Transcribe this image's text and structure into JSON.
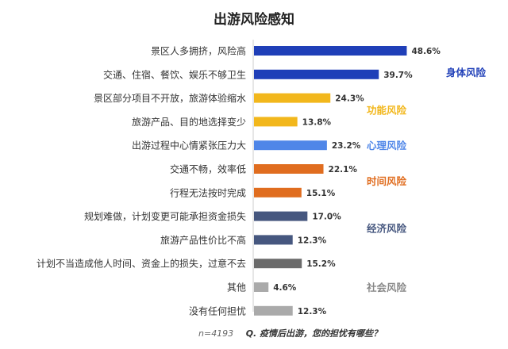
{
  "chart_data": {
    "type": "bar",
    "orientation": "horizontal",
    "title": "出游风险感知",
    "categories": [
      "景区人多拥挤，风险高",
      "交通、住宿、餐饮、娱乐不够卫生",
      "景区部分项目不开放，旅游体验缩水",
      "旅游产品、目的地选择变少",
      "出游过程中心情紧张压力大",
      "交通不畅，效率低",
      "行程无法按时完成",
      "规划难做，计划变更可能承担资金损失",
      "旅游产品性价比不高",
      "计划不当造成他人时间、资金上的损失，过意不去",
      "其他",
      "没有任何担忧"
    ],
    "values": [
      48.6,
      39.7,
      24.3,
      13.8,
      23.2,
      22.1,
      15.1,
      17.0,
      12.3,
      15.2,
      4.6,
      12.3
    ],
    "value_labels": [
      "48.6%",
      "39.7%",
      "24.3%",
      "13.8%",
      "23.2%",
      "22.1%",
      "15.1%",
      "17.0%",
      "12.3%",
      "15.2%",
      "4.6%",
      "12.3%"
    ],
    "xlim": [
      0,
      50
    ],
    "grid": false,
    "groups": [
      {
        "name": "身体风险",
        "start": 0,
        "end": 1,
        "color": "#1f3fb8"
      },
      {
        "name": "功能风险",
        "start": 2,
        "end": 3,
        "color": "#f2b71c"
      },
      {
        "name": "心理风险",
        "start": 4,
        "end": 4,
        "color": "#4f86e8"
      },
      {
        "name": "时间风险",
        "start": 5,
        "end": 6,
        "color": "#e06d1f"
      },
      {
        "name": "经济风险",
        "start": 7,
        "end": 8,
        "color": "#46577f"
      },
      {
        "name": "社会风险",
        "start": 9,
        "end": 11,
        "color": "#888888"
      }
    ],
    "bar_colors": [
      "#1f3fb8",
      "#1f3fb8",
      "#f2b71c",
      "#f2b71c",
      "#4f86e8",
      "#e06d1f",
      "#e06d1f",
      "#46577f",
      "#46577f",
      "#6b6b6b",
      "#aaaaaa",
      "#aaaaaa"
    ]
  },
  "footer": {
    "sample": "n=4193",
    "question": "Q. 疫情后出游，您的担忧有哪些？"
  }
}
